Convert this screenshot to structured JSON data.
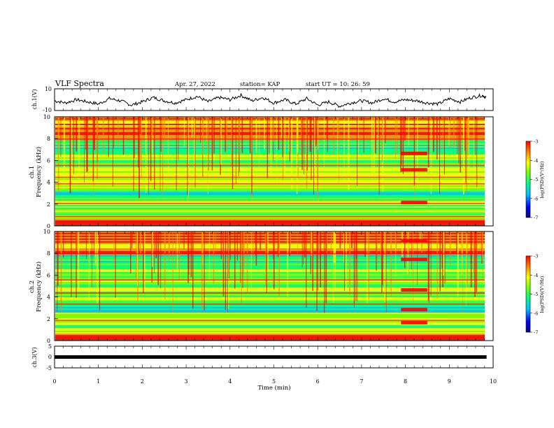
{
  "header": {
    "title": "VLF Spectra",
    "date": "Apr. 27, 2022",
    "station": "station= KAP",
    "start": "start  UT  =   10: 26: 59"
  },
  "colors": {
    "spectrum_scale": [
      "#00008b",
      "#0000ff",
      "#00bfff",
      "#00ff7f",
      "#7fff00",
      "#ffff00",
      "#ff8c00",
      "#ff0000"
    ],
    "trace": "#000000"
  },
  "chart_data": [
    {
      "type": "line",
      "name": "ch1",
      "ylabel": "ch.1(V)",
      "ylim": [
        -10,
        10
      ],
      "yticks": [
        "10",
        "-10"
      ],
      "x": [
        0,
        0.25,
        0.5,
        0.75,
        1,
        1.25,
        1.5,
        1.75,
        2,
        2.25,
        2.5,
        2.75,
        3,
        3.25,
        3.5,
        3.75,
        4,
        4.25,
        4.5,
        4.75,
        5,
        5.25,
        5.5,
        5.75,
        6,
        6.25,
        6.5,
        6.75,
        7,
        7.25,
        7.5,
        7.75,
        8,
        8.25,
        8.5,
        8.75,
        9,
        9.25,
        9.5,
        9.75,
        9.85
      ],
      "y": [
        -1,
        -3,
        0,
        -2,
        -4,
        1,
        -1,
        -5,
        -2,
        2,
        -1,
        -3,
        0,
        3,
        -2,
        2,
        0,
        4,
        -1,
        2,
        -3,
        0,
        -4,
        1,
        -5,
        -2,
        -6,
        -3,
        -1,
        -3,
        1,
        -2,
        0,
        -1,
        -3,
        -4,
        1,
        -2,
        2,
        4,
        2
      ]
    },
    {
      "type": "heatmap",
      "name": "ch1-spectrogram",
      "ylabel": "ch.1\nFrequency (kHz)",
      "yticks": [
        "0",
        "2",
        "4",
        "6",
        "8",
        "10"
      ],
      "ylim": [
        0,
        10
      ],
      "xlim": [
        0,
        10
      ],
      "colorbar": {
        "label": "log(PSD)(V²/Hz)",
        "ticks": [
          "-3",
          "-4",
          "-5",
          "-6",
          "-7"
        ],
        "range": [
          -7,
          -3
        ]
      }
    },
    {
      "type": "heatmap",
      "name": "ch2-spectrogram",
      "ylabel": "ch.2\nFrequency (kHz)",
      "yticks": [
        "0",
        "2",
        "4",
        "6",
        "8",
        "10"
      ],
      "ylim": [
        0,
        10
      ],
      "xlim": [
        0,
        10
      ],
      "colorbar": {
        "label": "log(PSD)(V²/Hz)",
        "ticks": [
          "-3",
          "-4",
          "-5",
          "-6",
          "-7"
        ],
        "range": [
          -7,
          -3
        ]
      }
    },
    {
      "type": "line",
      "name": "ch3",
      "ylabel": "ch.3(V)",
      "ylim": [
        -5,
        5
      ],
      "yticks": [
        "5",
        "0",
        "-5"
      ],
      "x": [
        0,
        9.85
      ],
      "y": [
        -1,
        -1
      ]
    }
  ],
  "xaxis": {
    "xlabel": "Time  (min)",
    "ticks": [
      "0",
      "1",
      "2",
      "3",
      "4",
      "5",
      "6",
      "7",
      "8",
      "9",
      "10"
    ],
    "xlim": [
      0,
      10
    ]
  }
}
